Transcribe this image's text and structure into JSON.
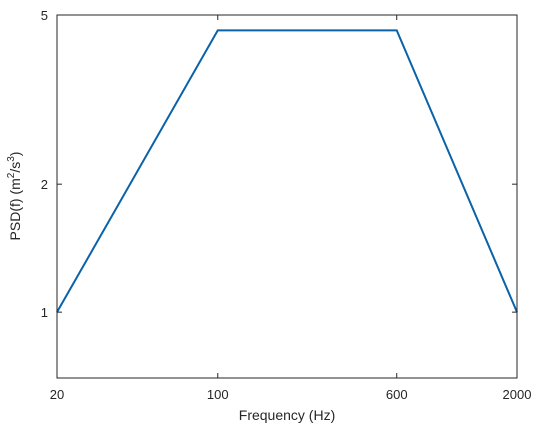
{
  "chart_data": {
    "type": "line",
    "xlabel": "Frequency (Hz)",
    "ylabel": "PSD(f) (m²/s³)",
    "ylabel_parts": {
      "prefix": "PSD(f) (m",
      "sup1": "2",
      "mid": "/s",
      "sup2": "3",
      "suffix": ")"
    },
    "x_scale": "log",
    "y_scale": "log",
    "xlim": [
      20,
      2000
    ],
    "ylim": [
      0.7,
      5
    ],
    "x_ticks": [
      20,
      100,
      600,
      2000
    ],
    "x_tick_labels": [
      "20",
      "100",
      "600",
      "2000"
    ],
    "y_ticks": [
      1,
      2,
      5
    ],
    "y_tick_labels": [
      "1",
      "2",
      "5"
    ],
    "grid": false,
    "series": [
      {
        "color": "#0a62a8",
        "x": [
          20,
          100,
          600,
          2000
        ],
        "y": [
          1,
          4.6,
          4.6,
          1
        ]
      }
    ]
  }
}
